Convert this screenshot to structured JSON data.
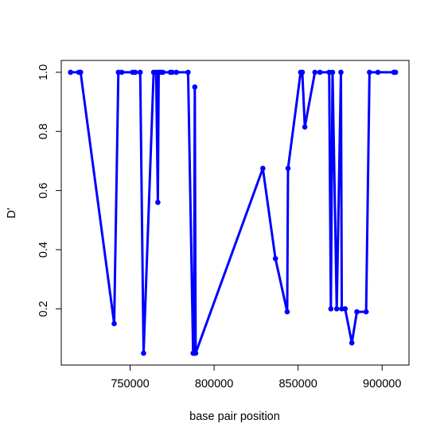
{
  "chart_data": {
    "type": "line",
    "title": "",
    "xlabel": "base pair position",
    "ylabel": "D'",
    "xlim": [
      709000,
      916000
    ],
    "ylim": [
      0.01,
      1.04
    ],
    "x_ticks": [
      750000,
      800000,
      850000,
      900000
    ],
    "x_tick_labels": [
      "750000",
      "800000",
      "850000",
      "900000"
    ],
    "y_ticks": [
      0.2,
      0.4,
      0.6,
      0.8,
      1.0
    ],
    "y_tick_labels": [
      "0.2",
      "0.4",
      "0.6",
      "0.8",
      "1.0"
    ],
    "grid": false,
    "legend": "none",
    "colors": {
      "line": "#0000ff",
      "axis": "#000000"
    },
    "series": [
      {
        "x": [
          714500,
          719500,
          720500,
          740500,
          743000,
          745000,
          751500,
          753000,
          756000,
          758000,
          764000,
          765500,
          766500,
          767000,
          768000,
          769500,
          774000,
          775000,
          777500,
          784500,
          787500,
          788000,
          788500,
          789000,
          829000,
          836500,
          843500,
          844000,
          851500,
          852500,
          854000,
          860000,
          863000,
          868500,
          869500,
          870500,
          873000,
          875500,
          876000,
          878000,
          882000,
          885000,
          890500,
          892500,
          897500,
          907000,
          907500,
          908000
        ],
        "y": [
          1.0,
          1.0,
          1.0,
          0.15,
          1.0,
          1.0,
          1.0,
          1.0,
          1.0,
          0.05,
          1.0,
          1.0,
          0.56,
          1.0,
          1.0,
          1.0,
          1.0,
          1.0,
          1.0,
          1.0,
          0.05,
          0.05,
          0.95,
          0.05,
          0.675,
          0.37,
          0.19,
          0.675,
          1.0,
          1.0,
          0.815,
          1.0,
          1.0,
          1.0,
          0.2,
          1.0,
          0.2,
          1.0,
          0.2,
          0.2,
          0.085,
          0.19,
          0.19,
          1.0,
          1.0,
          1.0,
          1.0,
          1.0
        ]
      }
    ]
  }
}
